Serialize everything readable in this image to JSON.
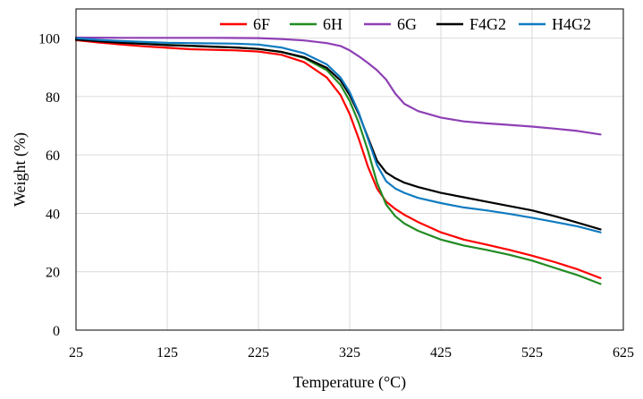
{
  "chart_data": {
    "type": "line",
    "title": "",
    "xlabel": "Temperature (°C)",
    "ylabel": "Weight (%)",
    "xlim": [
      25,
      625
    ],
    "ylim": [
      0,
      110
    ],
    "xticks": [
      25,
      125,
      225,
      325,
      425,
      525,
      625
    ],
    "yticks": [
      0,
      20,
      40,
      60,
      80,
      100
    ],
    "xtick_labels": [
      "25",
      "125",
      "225",
      "325",
      "425",
      "525",
      "625"
    ],
    "ytick_labels": [
      "0",
      "20",
      "40",
      "60",
      "80",
      "100"
    ],
    "grid": true,
    "legend_position": "top-right",
    "series": [
      {
        "name": "6F",
        "color": "#ff0000",
        "x": [
          25,
          50,
          75,
          100,
          125,
          150,
          175,
          200,
          225,
          250,
          275,
          300,
          315,
          325,
          335,
          345,
          355,
          365,
          375,
          385,
          400,
          425,
          450,
          475,
          500,
          525,
          550,
          575,
          600
        ],
        "y": [
          99.3,
          98.5,
          97.8,
          97.2,
          96.7,
          96.2,
          96.0,
          95.8,
          95.4,
          94.3,
          91.8,
          86.5,
          80.5,
          74.0,
          65.5,
          56.0,
          48.5,
          44.0,
          41.5,
          39.5,
          37.0,
          33.5,
          31.0,
          29.3,
          27.5,
          25.5,
          23.3,
          20.8,
          17.8
        ]
      },
      {
        "name": "6H",
        "color": "#228b22",
        "x": [
          25,
          50,
          75,
          100,
          125,
          150,
          175,
          200,
          225,
          250,
          275,
          300,
          315,
          325,
          335,
          345,
          355,
          365,
          375,
          385,
          400,
          425,
          450,
          475,
          500,
          525,
          550,
          575,
          600
        ],
        "y": [
          99.6,
          99.0,
          98.5,
          98.1,
          97.7,
          97.3,
          97.0,
          96.8,
          96.3,
          95.3,
          93.2,
          89.0,
          84.0,
          78.5,
          71.0,
          61.5,
          50.5,
          43.0,
          39.0,
          36.5,
          34.0,
          31.0,
          29.0,
          27.5,
          25.8,
          23.8,
          21.3,
          18.8,
          15.8
        ]
      },
      {
        "name": "6G",
        "color": "#8e3fb5",
        "x": [
          25,
          75,
          125,
          175,
          225,
          250,
          275,
          300,
          315,
          325,
          335,
          345,
          355,
          365,
          375,
          385,
          400,
          425,
          450,
          475,
          500,
          525,
          550,
          575,
          600
        ],
        "y": [
          100.2,
          100.1,
          100.1,
          100.1,
          100.0,
          99.7,
          99.2,
          98.3,
          97.3,
          95.8,
          93.8,
          91.5,
          89.0,
          85.8,
          81.0,
          77.5,
          75.0,
          72.8,
          71.5,
          70.8,
          70.3,
          69.7,
          69.0,
          68.2,
          67.0
        ]
      },
      {
        "name": "F4G2",
        "color": "#000000",
        "x": [
          25,
          50,
          75,
          100,
          125,
          150,
          175,
          200,
          225,
          250,
          275,
          300,
          315,
          325,
          335,
          345,
          355,
          365,
          375,
          385,
          400,
          425,
          450,
          475,
          500,
          525,
          550,
          575,
          600
        ],
        "y": [
          99.5,
          98.9,
          98.4,
          98.0,
          97.6,
          97.4,
          97.1,
          96.8,
          96.3,
          95.3,
          93.5,
          89.8,
          85.5,
          80.5,
          74.0,
          66.0,
          58.0,
          54.0,
          52.0,
          50.5,
          49.0,
          47.0,
          45.5,
          44.0,
          42.5,
          41.0,
          39.0,
          36.8,
          34.5
        ]
      },
      {
        "name": "H4G2",
        "color": "#0f7bc0",
        "x": [
          25,
          50,
          75,
          100,
          125,
          150,
          175,
          200,
          225,
          250,
          275,
          300,
          315,
          325,
          335,
          345,
          355,
          365,
          375,
          385,
          400,
          425,
          450,
          475,
          500,
          525,
          550,
          575,
          600
        ],
        "y": [
          100.0,
          99.4,
          99.0,
          98.7,
          98.4,
          98.3,
          98.2,
          98.1,
          97.8,
          96.8,
          94.8,
          91.0,
          86.5,
          81.5,
          74.5,
          65.5,
          56.5,
          51.0,
          48.5,
          47.0,
          45.3,
          43.5,
          42.0,
          41.0,
          39.8,
          38.5,
          37.0,
          35.5,
          33.5
        ]
      }
    ]
  }
}
